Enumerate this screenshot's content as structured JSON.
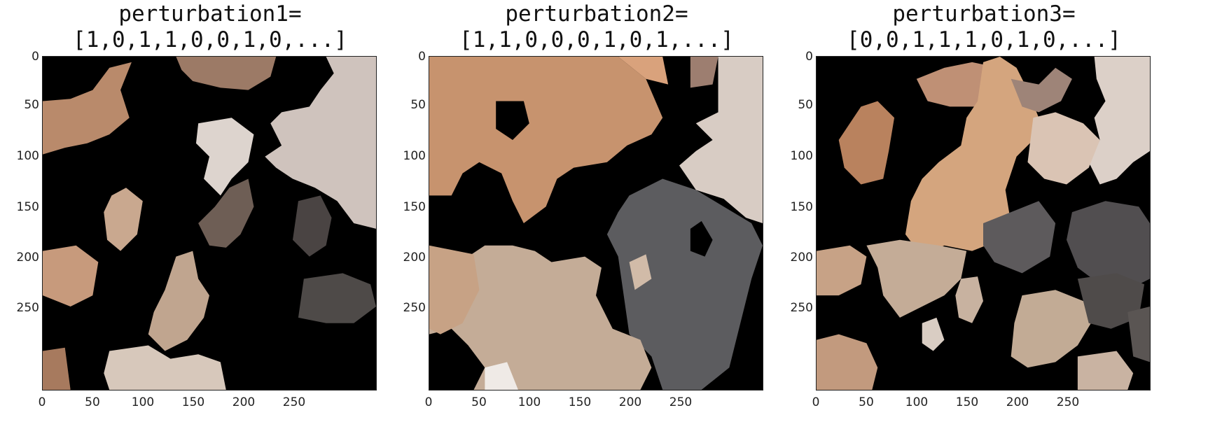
{
  "panels": [
    {
      "title_line1": "perturbation1=",
      "title_line2": "[1,0,1,1,0,0,1,0,...]"
    },
    {
      "title_line1": "perturbation2=",
      "title_line2": "[1,1,0,0,0,1,0,1,...]"
    },
    {
      "title_line1": "perturbation3=",
      "title_line2": "[0,0,1,1,1,0,1,0,...]"
    }
  ],
  "axis": {
    "y_ticks": [
      "0",
      "50",
      "100",
      "150",
      "200",
      "250"
    ],
    "x_ticks": [
      "0",
      "50",
      "100",
      "150",
      "200",
      "250"
    ],
    "x_range": [
      0,
      300
    ],
    "y_range": [
      0,
      300
    ]
  },
  "colors": {
    "mask": "#000000",
    "skin": "#b8896a",
    "beige": "#d8c6b6",
    "sand": "#c2aa94",
    "cat": "#5d5c5e",
    "fur": "#d3a17c"
  }
}
